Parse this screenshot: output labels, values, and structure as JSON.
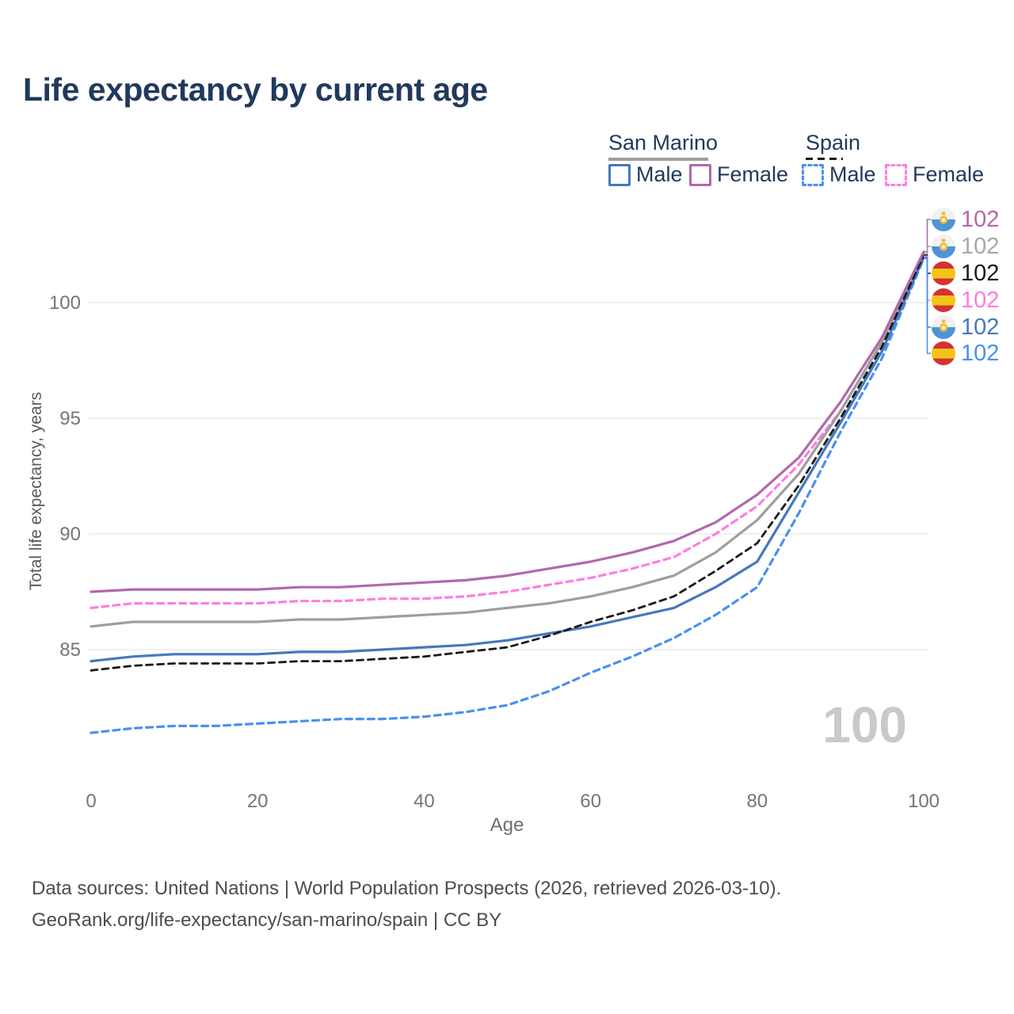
{
  "title": "Life expectancy by current age",
  "legend": {
    "groups": [
      {
        "label": "San Marino",
        "underline_color": "#9e9e9e",
        "underline_dashed": false,
        "items": [
          {
            "label": "Male",
            "series": "sm-male"
          },
          {
            "label": "Female",
            "series": "sm-female"
          }
        ]
      },
      {
        "label": "Spain",
        "underline_color": "#1a1a1a",
        "underline_dashed": true,
        "items": [
          {
            "label": "Male",
            "series": "es-male"
          },
          {
            "label": "Female",
            "series": "es-female"
          }
        ]
      }
    ]
  },
  "watermark_age": "100",
  "footer": {
    "line1": "Data sources: United Nations | World Population Prospects (2026, retrieved 2026-03-10).",
    "line2": "GeoRank.org/life-expectancy/san-marino/spain | CC BY"
  },
  "chart_data": {
    "type": "line",
    "title": "Life expectancy by current age",
    "xlabel": "Age",
    "ylabel": "Total life expectancy, years",
    "ages": [
      0,
      5,
      10,
      15,
      20,
      25,
      30,
      35,
      40,
      45,
      50,
      55,
      60,
      65,
      70,
      75,
      80,
      85,
      90,
      95,
      100
    ],
    "xticks": [
      0,
      20,
      40,
      60,
      80,
      100
    ],
    "yticks": [
      85,
      90,
      95,
      100
    ],
    "xlim": [
      0,
      100
    ],
    "ylim": [
      80.8,
      103
    ],
    "grid": "horizontal",
    "hover_age": 100,
    "series": [
      {
        "id": "sm-female",
        "country": "San Marino",
        "sex": "Female",
        "color": "#b168ac",
        "dashed": false,
        "end_label": "102",
        "label_row": 0,
        "values": [
          87.5,
          87.6,
          87.6,
          87.6,
          87.6,
          87.7,
          87.7,
          87.8,
          87.9,
          88.0,
          88.2,
          88.5,
          88.8,
          89.2,
          89.7,
          90.5,
          91.7,
          93.3,
          95.7,
          98.5,
          102.2
        ]
      },
      {
        "id": "sm-all",
        "country": "San Marino",
        "sex": "All",
        "color": "#9e9e9e",
        "dashed": false,
        "end_label": "102",
        "label_row": 1,
        "label_color": "#a8a8a8",
        "values": [
          86.0,
          86.2,
          86.2,
          86.2,
          86.2,
          86.3,
          86.3,
          86.4,
          86.5,
          86.6,
          86.8,
          87.0,
          87.3,
          87.7,
          88.2,
          89.2,
          90.6,
          92.6,
          95.3,
          98.3,
          102.1
        ]
      },
      {
        "id": "es-all",
        "country": "Spain",
        "sex": "All",
        "color": "#1a1a1a",
        "dashed": true,
        "end_label": "102",
        "label_row": 2,
        "values": [
          84.1,
          84.3,
          84.4,
          84.4,
          84.4,
          84.5,
          84.5,
          84.6,
          84.7,
          84.9,
          85.1,
          85.6,
          86.2,
          86.7,
          87.3,
          88.4,
          89.6,
          92.1,
          95.0,
          98.1,
          102.05
        ]
      },
      {
        "id": "es-female",
        "country": "Spain",
        "sex": "Female",
        "color": "#ff7ce0",
        "dashed": true,
        "end_label": "102",
        "label_row": 3,
        "values": [
          86.8,
          87.0,
          87.0,
          87.0,
          87.0,
          87.1,
          87.1,
          87.2,
          87.2,
          87.3,
          87.5,
          87.8,
          88.1,
          88.5,
          89.0,
          90.0,
          91.2,
          93.0,
          95.3,
          98.3,
          102.0
        ]
      },
      {
        "id": "sm-male",
        "country": "San Marino",
        "sex": "Male",
        "color": "#4678bd",
        "dashed": false,
        "end_label": "102",
        "label_row": 4,
        "values": [
          84.5,
          84.7,
          84.8,
          84.8,
          84.8,
          84.9,
          84.9,
          85.0,
          85.1,
          85.2,
          85.4,
          85.7,
          86.0,
          86.4,
          86.8,
          87.7,
          88.8,
          91.8,
          94.8,
          97.9,
          101.95
        ]
      },
      {
        "id": "es-male",
        "country": "Spain",
        "sex": "Male",
        "color": "#4a90f2",
        "dashed": true,
        "end_label": "102",
        "label_row": 5,
        "values": [
          81.4,
          81.6,
          81.7,
          81.7,
          81.8,
          81.9,
          82.0,
          82.0,
          82.1,
          82.3,
          82.6,
          83.2,
          84.0,
          84.7,
          85.5,
          86.5,
          87.7,
          90.9,
          94.4,
          97.6,
          101.9
        ]
      }
    ]
  }
}
